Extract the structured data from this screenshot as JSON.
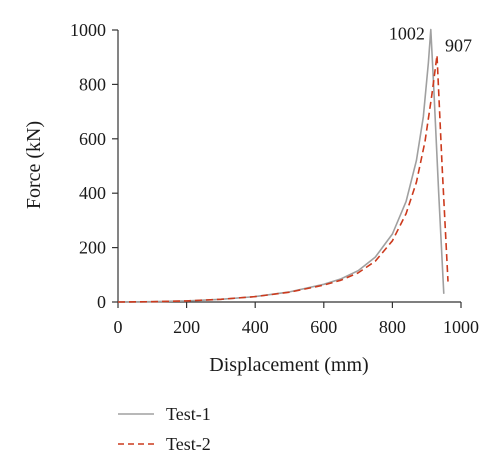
{
  "chart_data": {
    "type": "line",
    "title": "",
    "xlabel": "Displacement (mm)",
    "ylabel": "Force (kN)",
    "xlim": [
      0,
      1000
    ],
    "ylim": [
      0,
      1000
    ],
    "xticks": [
      0,
      200,
      400,
      600,
      800,
      1000
    ],
    "yticks": [
      0,
      200,
      400,
      600,
      800,
      1000
    ],
    "grid": false,
    "legend_position": "bottom-left",
    "series": [
      {
        "name": "Test-1",
        "color": "#a0a0a0",
        "dash": "solid",
        "points": [
          [
            0,
            0
          ],
          [
            100,
            1
          ],
          [
            200,
            4
          ],
          [
            300,
            10
          ],
          [
            400,
            20
          ],
          [
            500,
            37
          ],
          [
            600,
            65
          ],
          [
            650,
            85
          ],
          [
            700,
            115
          ],
          [
            750,
            165
          ],
          [
            800,
            250
          ],
          [
            840,
            370
          ],
          [
            870,
            520
          ],
          [
            890,
            680
          ],
          [
            905,
            880
          ],
          [
            912,
            1002
          ],
          [
            920,
            800
          ],
          [
            935,
            400
          ],
          [
            950,
            30
          ]
        ]
      },
      {
        "name": "Test-2",
        "color": "#cc3a1d",
        "dash": "dashed",
        "points": [
          [
            0,
            0
          ],
          [
            100,
            1
          ],
          [
            200,
            4
          ],
          [
            300,
            10
          ],
          [
            400,
            20
          ],
          [
            500,
            36
          ],
          [
            600,
            62
          ],
          [
            650,
            80
          ],
          [
            700,
            107
          ],
          [
            750,
            150
          ],
          [
            800,
            225
          ],
          [
            840,
            325
          ],
          [
            870,
            440
          ],
          [
            895,
            590
          ],
          [
            915,
            760
          ],
          [
            930,
            907
          ],
          [
            945,
            500
          ],
          [
            962,
            75
          ]
        ]
      }
    ],
    "annotations": [
      {
        "text": "1002",
        "x": 912,
        "y": 1002
      },
      {
        "text": "907",
        "x": 930,
        "y": 907
      }
    ]
  }
}
